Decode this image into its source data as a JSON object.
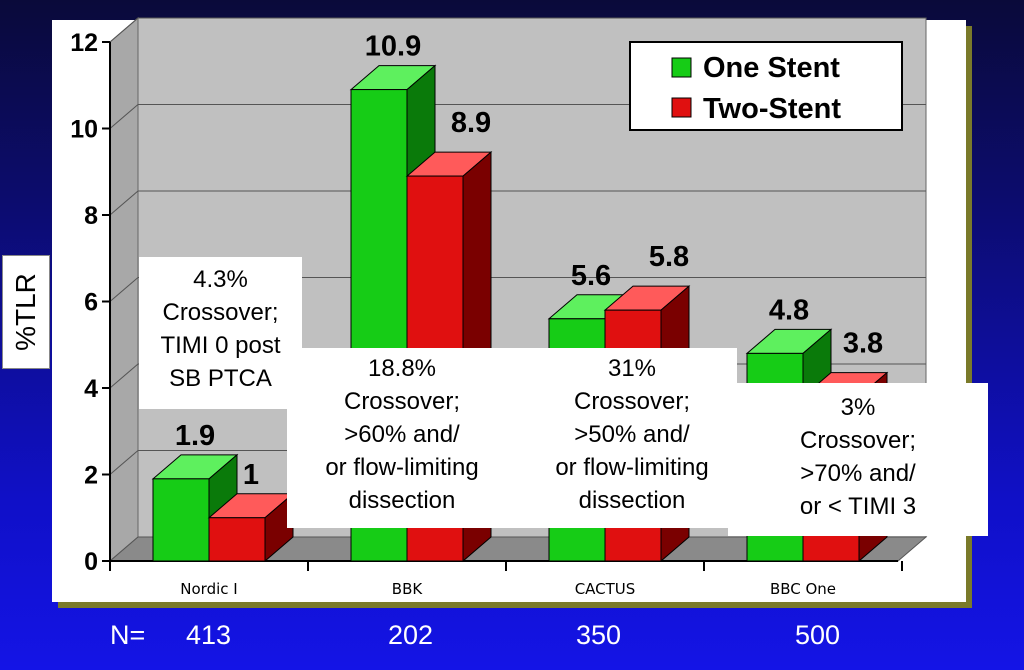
{
  "chart_data": {
    "type": "bar",
    "categories": [
      "Nordic I",
      "BBK",
      "CACTUS",
      "BBC One"
    ],
    "series": [
      {
        "name": "One Stent",
        "values": [
          1.9,
          10.9,
          5.6,
          4.8
        ],
        "labels": [
          "1.9",
          "10.9",
          "5.6",
          "4.8"
        ],
        "color": "#16cc16"
      },
      {
        "name": "Two-Stent",
        "values": [
          1,
          8.9,
          5.8,
          3.8
        ],
        "labels": [
          "1",
          "8.9",
          "5.8",
          "3.8"
        ],
        "color": "#e01010"
      }
    ],
    "ylabel": "%TLR",
    "ylim": [
      0,
      12
    ],
    "yticks": [
      "0",
      "2",
      "4",
      "6",
      "8",
      "10",
      "12"
    ],
    "grid": true,
    "legend_position": "top-right"
  },
  "n_row": {
    "label": "N=",
    "values": [
      "413",
      "202",
      "350",
      "500"
    ]
  },
  "callouts": [
    {
      "lines": [
        "4.3%",
        "Crossover;",
        "TIMI 0 post",
        "SB PTCA"
      ]
    },
    {
      "lines": [
        "18.8%",
        "Crossover;",
        ">60% and/",
        "or flow-limiting",
        "dissection"
      ]
    },
    {
      "lines": [
        "31%",
        "Crossover;",
        ">50% and/",
        "or flow-limiting",
        "dissection"
      ]
    },
    {
      "lines": [
        "3%",
        "Crossover;",
        ">70% and/",
        "or < TIMI 3"
      ]
    }
  ],
  "colors": {
    "chart_panel": "#ffffff",
    "plot_wall": "#c0c0c0",
    "floor": "#8a8a8a",
    "text": "#000000"
  }
}
